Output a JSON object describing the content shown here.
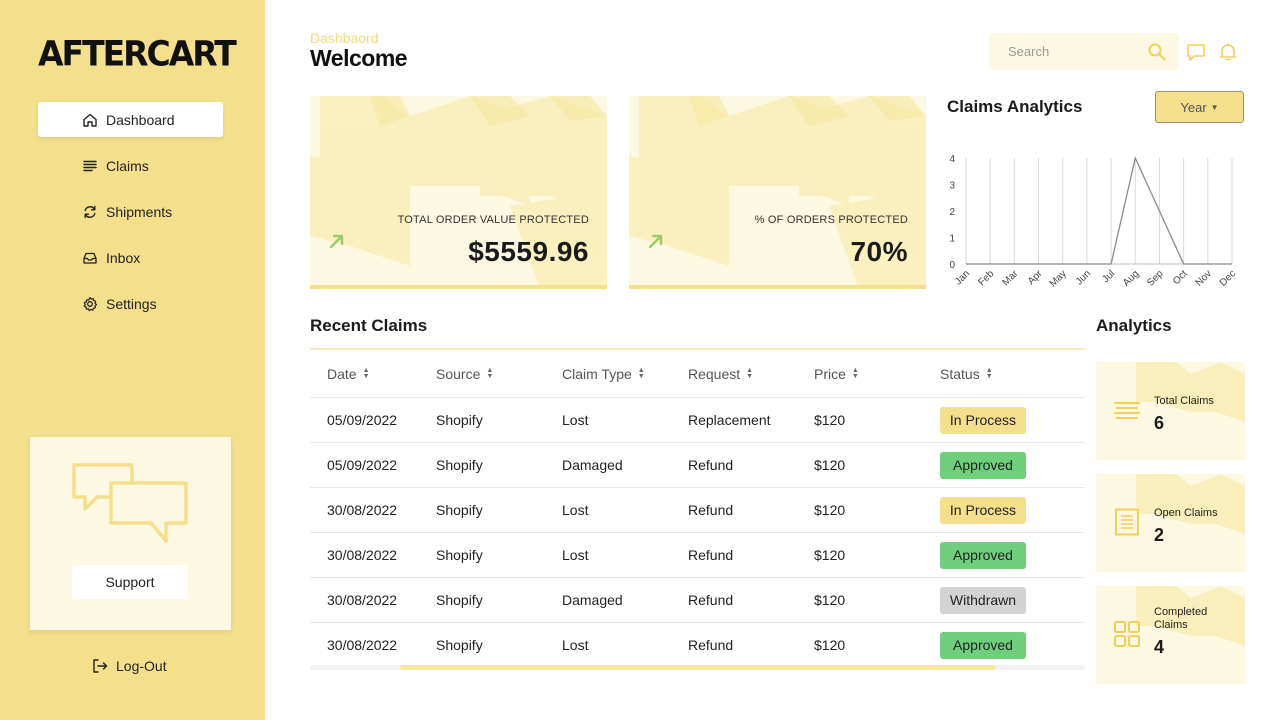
{
  "app": {
    "logo": "AFTERCART"
  },
  "sidebar": {
    "items": [
      {
        "label": "Dashboard",
        "icon": "home-icon"
      },
      {
        "label": "Claims",
        "icon": "list-icon"
      },
      {
        "label": "Shipments",
        "icon": "refresh-icon"
      },
      {
        "label": "Inbox",
        "icon": "inbox-icon"
      },
      {
        "label": "Settings",
        "icon": "gear-icon"
      }
    ],
    "support_label": "Support",
    "logout_label": "Log-Out"
  },
  "header": {
    "breadcrumb": "Dashbaord",
    "title": "Welcome",
    "search_placeholder": "Search"
  },
  "stats": [
    {
      "label": "TOTAL ORDER VALUE PROTECTED",
      "value": "$5559.96"
    },
    {
      "label": "% OF ORDERS PROTECTED",
      "value": "70%"
    }
  ],
  "claims_analytics": {
    "title": "Claims Analytics",
    "filter": "Year"
  },
  "chart_data": {
    "type": "line",
    "categories": [
      "Jan",
      "Feb",
      "Mar",
      "Apr",
      "May",
      "Jun",
      "Jul",
      "Aug",
      "Sep",
      "Oct",
      "Nov",
      "Dec"
    ],
    "series": [
      {
        "values": [
          0,
          0,
          0,
          0,
          0,
          0,
          0,
          4,
          2,
          0,
          0,
          0
        ]
      }
    ],
    "yticks": [
      0,
      1,
      2,
      3,
      4
    ],
    "ylim": [
      0,
      4
    ],
    "grid": "vertical"
  },
  "recent_claims": {
    "title": "Recent Claims",
    "columns": [
      "Date",
      "Source",
      "Claim Type",
      "Request",
      "Price",
      "Status"
    ],
    "rows": [
      {
        "date": "05/09/2022",
        "source": "Shopify",
        "type": "Lost",
        "request": "Replacement",
        "price": "$120",
        "status": "In Process"
      },
      {
        "date": "05/09/2022",
        "source": "Shopify",
        "type": "Damaged",
        "request": "Refund",
        "price": "$120",
        "status": "Approved"
      },
      {
        "date": "30/08/2022",
        "source": "Shopify",
        "type": "Lost",
        "request": "Refund",
        "price": "$120",
        "status": "In Process"
      },
      {
        "date": "30/08/2022",
        "source": "Shopify",
        "type": "Lost",
        "request": "Refund",
        "price": "$120",
        "status": "Approved"
      },
      {
        "date": "30/08/2022",
        "source": "Shopify",
        "type": "Damaged",
        "request": "Refund",
        "price": "$120",
        "status": "Withdrawn"
      },
      {
        "date": "30/08/2022",
        "source": "Shopify",
        "type": "Lost",
        "request": "Refund",
        "price": "$120",
        "status": "Approved"
      }
    ],
    "status_colors": {
      "In Process": "#f3df8c",
      "Approved": "#6fcf7c",
      "Withdrawn": "#d3d3d3"
    }
  },
  "analytics": {
    "title": "Analytics",
    "cards": [
      {
        "label": "Total Claims",
        "value": "6",
        "icon": "list-icon"
      },
      {
        "label": "Open Claims",
        "value": "2",
        "icon": "document-icon"
      },
      {
        "label": "Completed Claims",
        "value": "4",
        "icon": "grid-icon"
      }
    ]
  },
  "colors": {
    "accent": "#f3df8c",
    "card_bg": "#fdf8e1",
    "arrow": "#9ccb6a"
  }
}
